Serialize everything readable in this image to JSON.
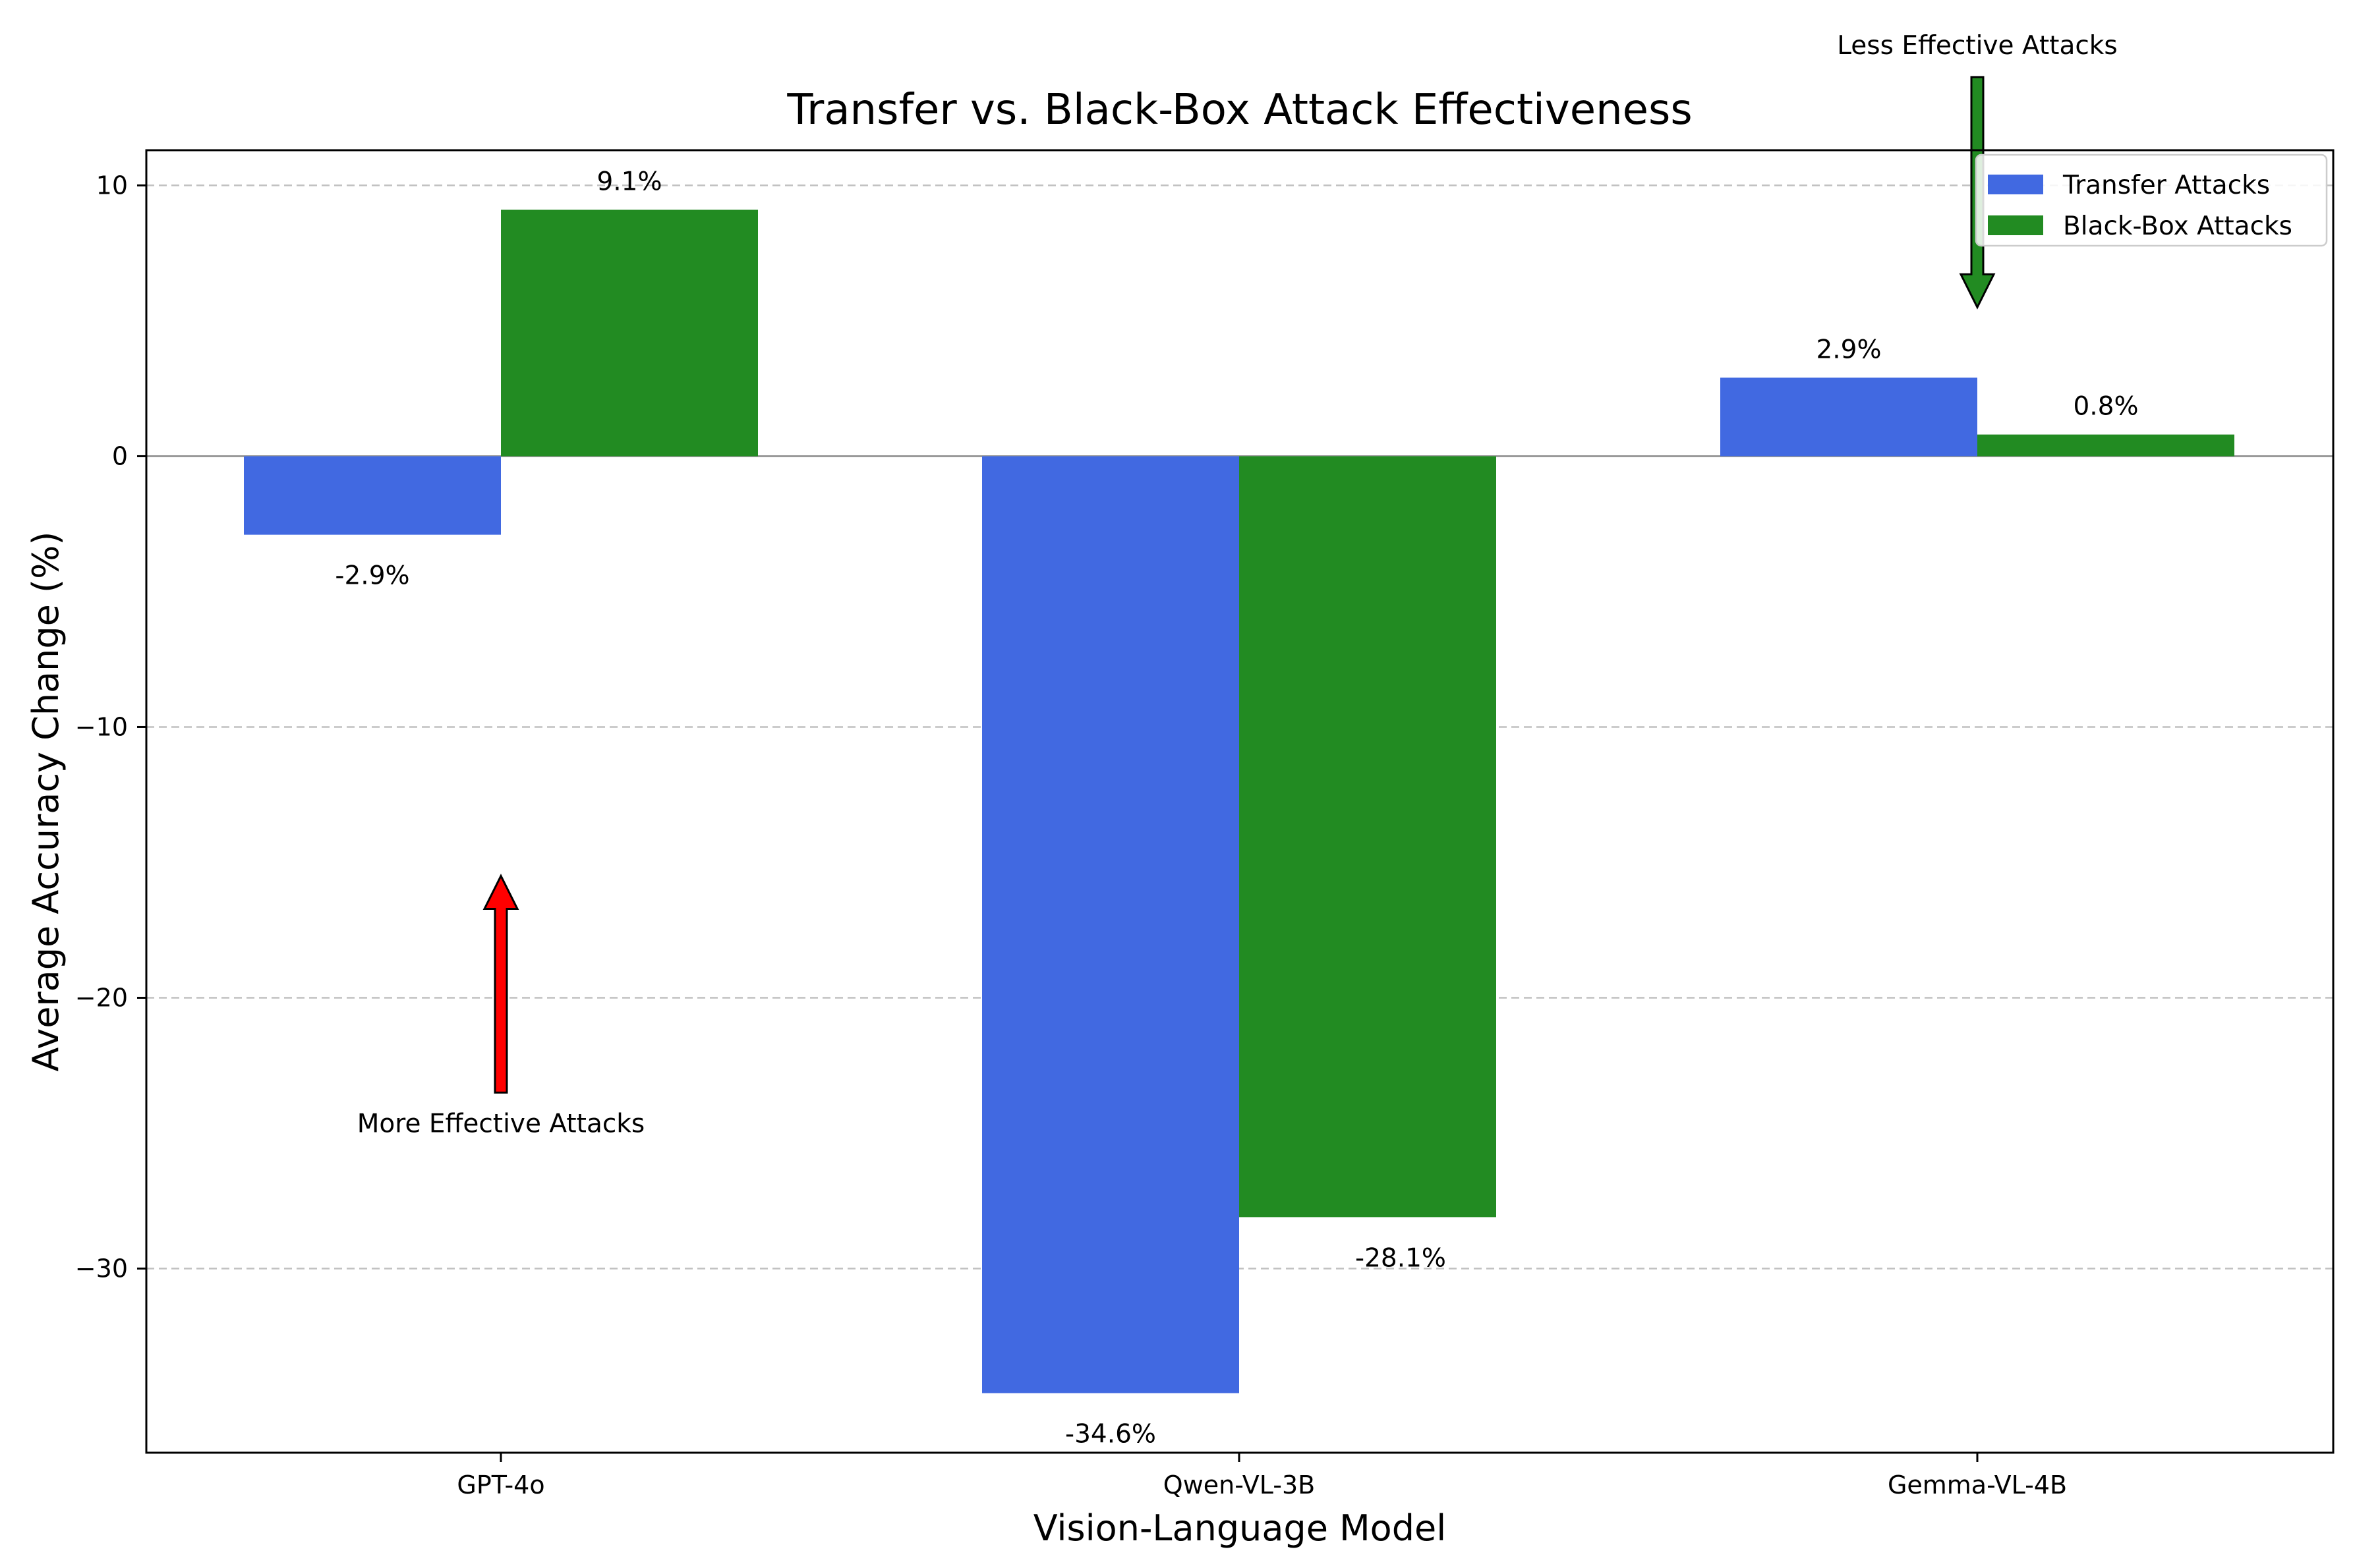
{
  "chart_data": {
    "type": "bar",
    "title": "Transfer vs. Black-Box Attack Effectiveness",
    "xlabel": "Vision-Language Model",
    "ylabel": "Average Accuracy Change (%)",
    "categories": [
      "GPT-4o",
      "Qwen-VL-3B",
      "Gemma-VL-4B"
    ],
    "series": [
      {
        "name": "Transfer Attacks",
        "color": "#4169e1",
        "values": [
          -2.9,
          -34.6,
          2.9
        ],
        "labels": [
          "-2.9%",
          "-34.6%",
          "2.9%"
        ]
      },
      {
        "name": "Black-Box Attacks",
        "color": "#228b22",
        "values": [
          9.1,
          -28.1,
          0.8
        ],
        "labels": [
          "9.1%",
          "-28.1%",
          "0.8%"
        ]
      }
    ],
    "ylim": [
      -36.8,
      11.3
    ],
    "yticks": [
      10,
      0,
      -10,
      -20,
      -30
    ],
    "ytick_labels": [
      "10",
      "0",
      "−10",
      "−20",
      "−30"
    ],
    "grid": true,
    "legend": "top-right",
    "annotations": [
      {
        "text": "More Effective Attacks",
        "color": "#ff0000",
        "direction": "up",
        "category": "GPT-4o",
        "y_from": -23.5,
        "y_to": -15.5
      },
      {
        "text": "Less Effective Attacks",
        "color": "#228b22",
        "direction": "down",
        "category": "Gemma-VL-4B",
        "y_from": 14,
        "y_to": 5.5
      }
    ]
  }
}
